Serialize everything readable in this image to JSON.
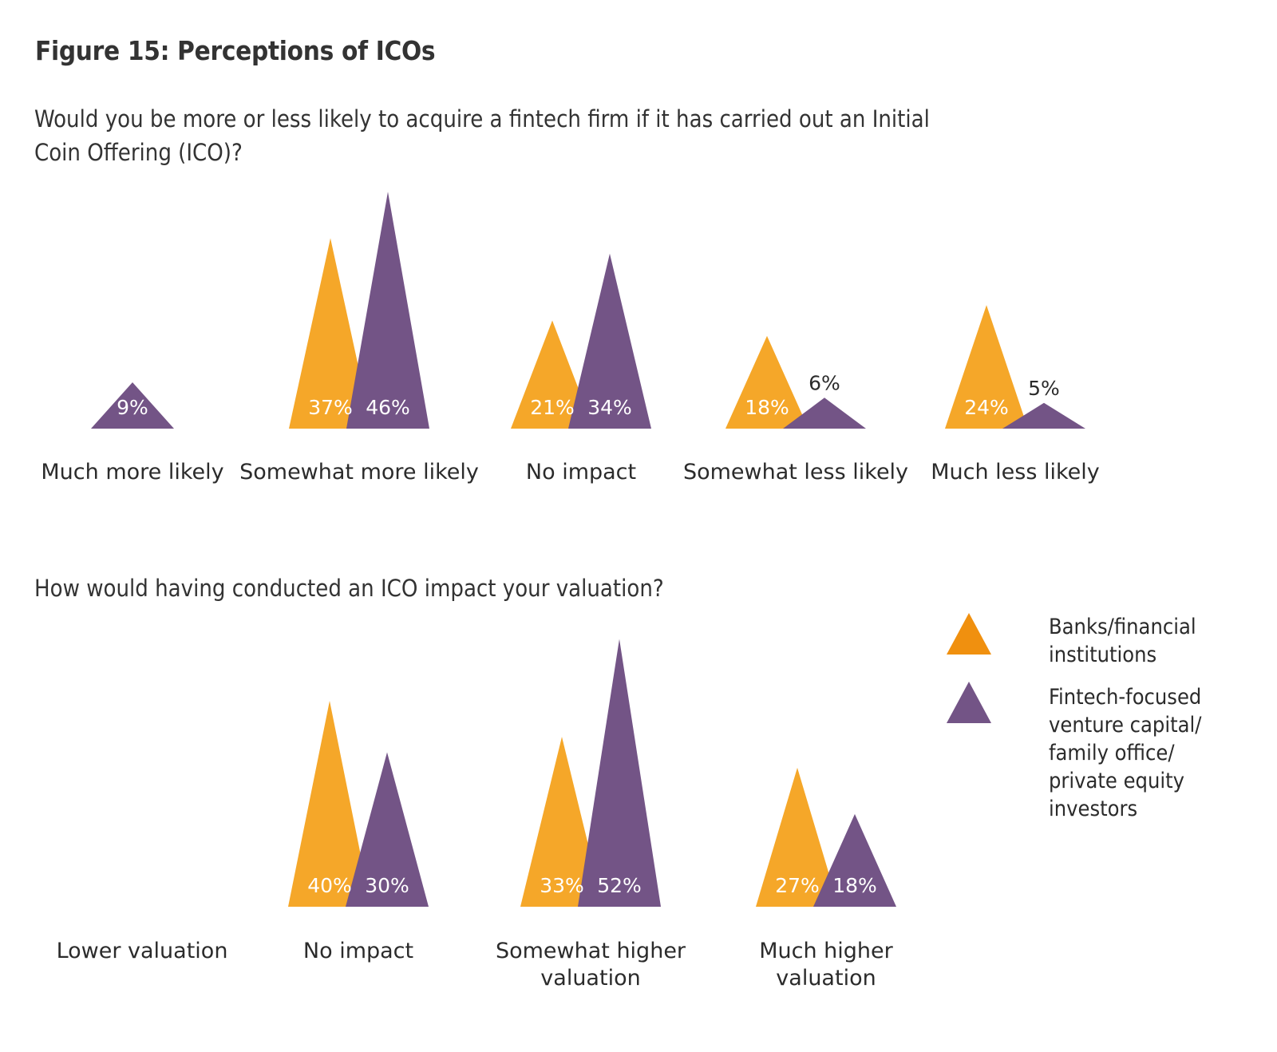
{
  "title": "Figure 15: Perceptions of ICOs",
  "colors": {
    "banks": "#F5A729",
    "fintech": "#735486",
    "banks_legend": "#F0900F"
  },
  "legend": [
    {
      "key": "banks",
      "label": "Banks/financial\ninstitutions"
    },
    {
      "key": "fintech",
      "label": "Fintech-focused\nventure capital/\nfamily office/\nprivate equity\ninvestors"
    }
  ],
  "chart_data": [
    {
      "type": "bar",
      "mark": "triangle",
      "title": "Would you be more or less likely to acquire a fintech firm if it has carried out an Initial Coin Offering (ICO)?",
      "categories": [
        "Much more likely",
        "Somewhat more likely",
        "No impact",
        "Somewhat less likely",
        "Much less likely"
      ],
      "series": [
        {
          "name": "Banks/financial institutions",
          "key": "banks",
          "values": [
            null,
            37,
            21,
            18,
            24
          ],
          "labels": [
            "",
            "37%",
            "21%",
            "18%",
            "24%"
          ]
        },
        {
          "name": "Fintech-focused venture capital/family office/private equity investors",
          "key": "fintech",
          "values": [
            9,
            46,
            34,
            6,
            5
          ],
          "labels": [
            "9%",
            "46%",
            "34%",
            "6%",
            "5%"
          ]
        }
      ],
      "unit": "%"
    },
    {
      "type": "bar",
      "mark": "triangle",
      "title": "How would having conducted an ICO impact your valuation?",
      "categories": [
        "Lower valuation",
        "No impact",
        "Somewhat higher\nvaluation",
        "Much higher\nvaluation"
      ],
      "series": [
        {
          "name": "Banks/financial institutions",
          "key": "banks",
          "values": [
            null,
            40,
            33,
            27
          ],
          "labels": [
            "",
            "40%",
            "33%",
            "27%"
          ]
        },
        {
          "name": "Fintech-focused venture capital/family office/private equity investors",
          "key": "fintech",
          "values": [
            null,
            30,
            52,
            18
          ],
          "labels": [
            "",
            "30%",
            "52%",
            "18%"
          ]
        }
      ],
      "unit": "%"
    }
  ]
}
